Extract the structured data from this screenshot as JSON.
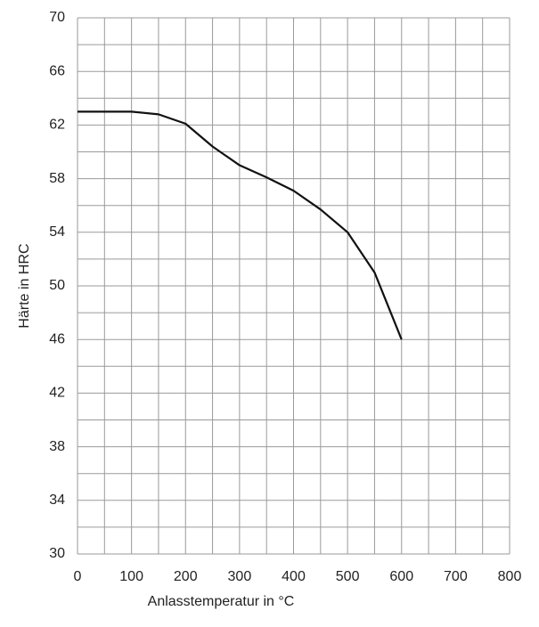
{
  "chart_data": {
    "type": "line",
    "x_label": "Anlasstemperatur in °C",
    "y_label": "Härte in HRC",
    "x": [
      0,
      50,
      100,
      150,
      200,
      250,
      300,
      350,
      400,
      450,
      500,
      550,
      600
    ],
    "series": [
      {
        "color": "#111111",
        "values": [
          63,
          63,
          63,
          62.8,
          62.1,
          60.4,
          59,
          58.1,
          57.1,
          55.7,
          54,
          51,
          46
        ]
      }
    ],
    "xlim": [
      0,
      800
    ],
    "xticks": [
      0,
      100,
      200,
      300,
      400,
      500,
      600,
      700,
      800
    ],
    "ylim": [
      30,
      70
    ],
    "yticks": [
      30,
      34,
      38,
      42,
      46,
      50,
      54,
      58,
      62,
      66,
      70
    ],
    "grid": true
  }
}
